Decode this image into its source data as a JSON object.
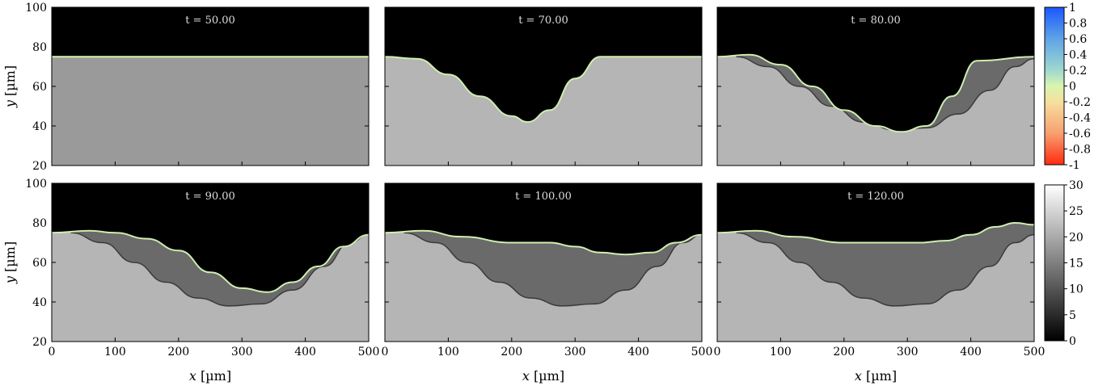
{
  "chart_data": {
    "type": "heatmap",
    "panels": [
      {
        "title": "t = 50.00",
        "t_var": "t",
        "t_value": "50.00"
      },
      {
        "title": "t = 70.00",
        "t_var": "t",
        "t_value": "70.00"
      },
      {
        "title": "t = 80.00",
        "t_var": "t",
        "t_value": "80.00"
      },
      {
        "title": "t = 90.00",
        "t_var": "t",
        "t_value": "90.00"
      },
      {
        "title": "t = 100.00",
        "t_var": "t",
        "t_value": "100.00"
      },
      {
        "title": "t = 120.00",
        "t_var": "t",
        "t_value": "120.00"
      }
    ],
    "xlabel_var": "x",
    "xlabel_unit": "[µm]",
    "ylabel_var": "y",
    "ylabel_unit": "[µm]",
    "xlim": [
      0,
      500
    ],
    "ylim": [
      20,
      100
    ],
    "xticks": [
      "0",
      "100",
      "200",
      "300",
      "400",
      "500"
    ],
    "yticks": [
      "20",
      "40",
      "60",
      "80",
      "100"
    ],
    "colorbar_top": {
      "range": [
        -1,
        1
      ],
      "ticks": [
        "1",
        "0.8",
        "0.6",
        "0.4",
        "0.2",
        "0",
        "-0.2",
        "-0.4",
        "-0.6",
        "-0.8",
        "-1"
      ],
      "colors": [
        "#1a56ff",
        "#5fa3e6",
        "#9fd8d0",
        "#d8f5b0",
        "#f5e0a0",
        "#f7a070",
        "#ff2a10"
      ]
    },
    "colorbar_bottom": {
      "range": [
        0,
        30
      ],
      "ticks": [
        "30",
        "25",
        "20",
        "15",
        "10",
        "5",
        "0"
      ],
      "colors": [
        "#000000",
        "#ffffff"
      ]
    },
    "surface_profiles": [
      {
        "x": [
          0,
          500
        ],
        "y": [
          75,
          75
        ]
      },
      {
        "x": [
          0,
          50,
          100,
          150,
          200,
          225,
          260,
          300,
          340,
          500
        ],
        "y": [
          75,
          74,
          66,
          55,
          45,
          42,
          48,
          64,
          75,
          75
        ]
      },
      {
        "x": [
          0,
          50,
          100,
          150,
          200,
          250,
          290,
          330,
          370,
          410,
          500
        ],
        "y": [
          75,
          76,
          71,
          60,
          48,
          40,
          37,
          40,
          55,
          73,
          75
        ]
      },
      {
        "x": [
          0,
          60,
          100,
          150,
          200,
          250,
          300,
          340,
          380,
          420,
          460,
          500
        ],
        "y": [
          75,
          76,
          75,
          72,
          66,
          55,
          47,
          45,
          50,
          58,
          68,
          74
        ]
      },
      {
        "x": [
          0,
          60,
          120,
          200,
          260,
          300,
          340,
          380,
          420,
          460,
          500
        ],
        "y": [
          75,
          76,
          73,
          70,
          70,
          68,
          65,
          64,
          65,
          70,
          74
        ]
      },
      {
        "x": [
          0,
          60,
          120,
          200,
          280,
          320,
          360,
          400,
          440,
          470,
          500
        ],
        "y": [
          75,
          76,
          73,
          70,
          70,
          70,
          71,
          74,
          78,
          80,
          79
        ]
      }
    ],
    "trench_bottom": {
      "x": [
        30,
        80,
        130,
        180,
        230,
        280,
        330,
        380,
        430,
        470,
        500
      ],
      "y": [
        75,
        70,
        60,
        50,
        42,
        38,
        39,
        46,
        58,
        70,
        74
      ]
    }
  }
}
